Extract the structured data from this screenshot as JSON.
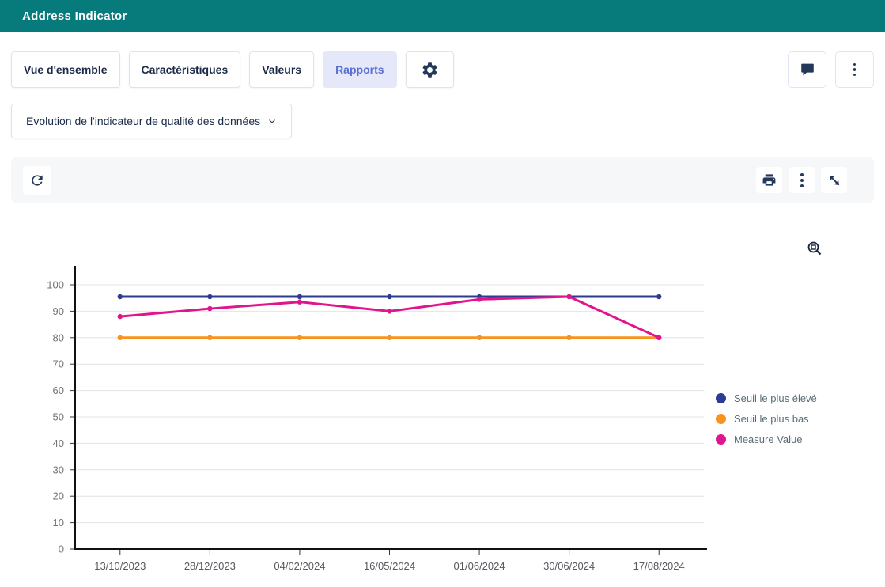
{
  "header": {
    "title": "Address Indicator"
  },
  "nav_tabs": [
    {
      "label": "Vue d'ensemble",
      "active": false
    },
    {
      "label": "Caractéristiques",
      "active": false
    },
    {
      "label": "Valeurs",
      "active": false
    },
    {
      "label": "Rapports",
      "active": true
    }
  ],
  "report_selector": {
    "label": "Evolution de l'indicateur de qualité des données"
  },
  "chart_data": {
    "type": "line",
    "title": "",
    "xlabel": "",
    "ylabel": "",
    "categories": [
      "13/10/2023",
      "28/12/2023",
      "04/02/2024",
      "16/05/2024",
      "01/06/2024",
      "30/06/2024",
      "17/08/2024"
    ],
    "series": [
      {
        "name": "Seuil le plus élevé",
        "color": "#2d3b92",
        "values": [
          95.5,
          95.5,
          95.5,
          95.5,
          95.5,
          95.5,
          95.5
        ]
      },
      {
        "name": "Seuil le plus bas",
        "color": "#f7941e",
        "values": [
          80,
          80,
          80,
          80,
          80,
          80,
          80
        ]
      },
      {
        "name": "Measure Value",
        "color": "#e0158d",
        "values": [
          88,
          91,
          93.5,
          90,
          94.5,
          95.5,
          80
        ]
      }
    ],
    "ylim": [
      0,
      100
    ],
    "ytick_step": 10,
    "grid": true,
    "legend_position": "right"
  },
  "colors": {
    "header_bg": "#077a7b",
    "accent": "#5b6fd1",
    "active_tab_bg": "#e4e8f9",
    "icon": "#24395a",
    "axis": "#111111",
    "grid": "#e4e4e4",
    "y_tick_label": "#6f7478",
    "x_tick_label": "#55595e",
    "legend_text": "#5a6e79"
  }
}
